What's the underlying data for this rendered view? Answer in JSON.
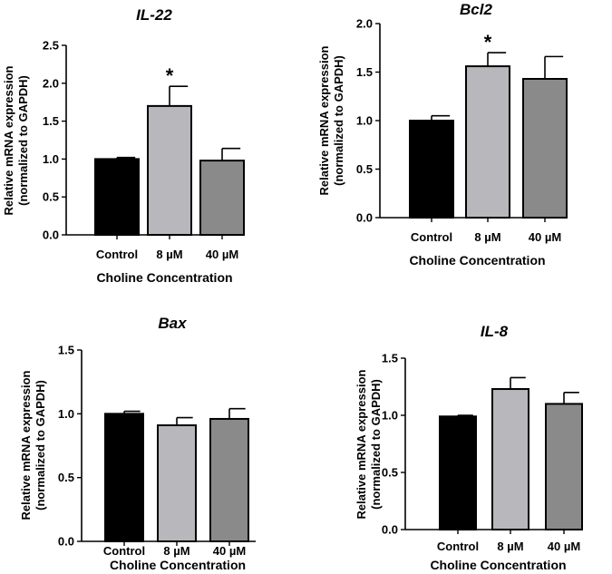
{
  "chart_data": [
    {
      "type": "bar",
      "title": "IL-22",
      "ylabel_line1": "Relative mRNA expression",
      "ylabel_line2": "(normalized to GAPDH)",
      "xlabel": "Choline Concentration",
      "categories": [
        "Control",
        "8 µM",
        "40 µM"
      ],
      "values": [
        1.0,
        1.7,
        0.98
      ],
      "errors": [
        0.02,
        0.26,
        0.16
      ],
      "bar_colors": [
        "#000000",
        "#b8b8bc",
        "#8a8a8a"
      ],
      "significance": [
        "",
        "*",
        ""
      ],
      "ylim": [
        0,
        2.5
      ],
      "yticks": [
        "0.0",
        "0.5",
        "1.0",
        "1.5",
        "2.0",
        "2.5"
      ]
    },
    {
      "type": "bar",
      "title": "Bcl2",
      "ylabel_line1": "Relative mRNA expression",
      "ylabel_line2": "(normalized to GAPDH)",
      "xlabel": "Choline Concentration",
      "categories": [
        "Control",
        "8 µM",
        "40 µM"
      ],
      "values": [
        1.0,
        1.56,
        1.43
      ],
      "errors": [
        0.05,
        0.14,
        0.23
      ],
      "bar_colors": [
        "#000000",
        "#b8b8bc",
        "#8a8a8a"
      ],
      "significance": [
        "",
        "*",
        ""
      ],
      "ylim": [
        0,
        2.0
      ],
      "yticks": [
        "0.0",
        "0.5",
        "1.0",
        "1.5",
        "2.0"
      ]
    },
    {
      "type": "bar",
      "title": "Bax",
      "ylabel_line1": "Relative mRNA expression",
      "ylabel_line2": "(normalized to GAPDH)",
      "xlabel": "Choline Concentration",
      "categories": [
        "Control",
        "8 µM",
        "40 µM"
      ],
      "values": [
        1.0,
        0.91,
        0.96
      ],
      "errors": [
        0.02,
        0.06,
        0.08
      ],
      "bar_colors": [
        "#000000",
        "#b8b8bc",
        "#8a8a8a"
      ],
      "significance": [
        "",
        "",
        ""
      ],
      "ylim": [
        0,
        1.5
      ],
      "yticks": [
        "0.0",
        "0.5",
        "1.0",
        "1.5"
      ]
    },
    {
      "type": "bar",
      "title": "IL-8",
      "ylabel_line1": "Relative mRNA expression",
      "ylabel_line2": "(normalized to GAPDH)",
      "xlabel": "Choline Concentration",
      "categories": [
        "Control",
        "8 µM",
        "40 µM"
      ],
      "values": [
        0.99,
        1.23,
        1.1
      ],
      "errors": [
        0.01,
        0.1,
        0.1
      ],
      "bar_colors": [
        "#000000",
        "#b8b8bc",
        "#8a8a8a"
      ],
      "significance": [
        "",
        "",
        ""
      ],
      "ylim": [
        0,
        1.5
      ],
      "yticks": [
        "0.0",
        "0.5",
        "1.0",
        "1.5"
      ]
    }
  ]
}
